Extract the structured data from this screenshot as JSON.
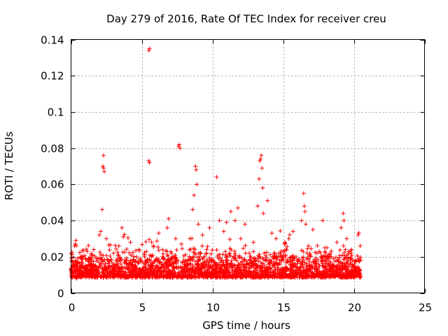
{
  "chart_data": {
    "type": "scatter",
    "title": "Day 279 of 2016, Rate Of TEC Index for receiver creu",
    "xlabel": "GPS time / hours",
    "ylabel": "ROTI / TECUs",
    "xlim": [
      0,
      25
    ],
    "ylim": [
      0,
      0.14
    ],
    "x_ticks": [
      0,
      5,
      10,
      15,
      20,
      25
    ],
    "x_tick_labels": [
      "0",
      "5",
      "10",
      "15",
      "20",
      "25"
    ],
    "y_ticks": [
      0,
      0.02,
      0.04,
      0.06,
      0.08,
      0.1,
      0.12,
      0.14
    ],
    "y_tick_labels": [
      "0",
      "0.02",
      "0.04",
      "0.06",
      "0.08",
      "0.1",
      "0.12",
      "0.14"
    ],
    "grid": true,
    "marker": "+",
    "color": "#ff0000",
    "series": [
      {
        "name": "ROTI",
        "points": [
          [
            0.05,
            0.012
          ],
          [
            0.2,
            0.016
          ],
          [
            0.25,
            0.026
          ],
          [
            0.3,
            0.027
          ],
          [
            0.4,
            0.008
          ],
          [
            0.6,
            0.014
          ],
          [
            0.8,
            0.02
          ],
          [
            1.0,
            0.011
          ],
          [
            1.2,
            0.018
          ],
          [
            1.4,
            0.009
          ],
          [
            1.6,
            0.024
          ],
          [
            1.8,
            0.013
          ],
          [
            2.0,
            0.032
          ],
          [
            2.1,
            0.034
          ],
          [
            2.2,
            0.046
          ],
          [
            2.25,
            0.07
          ],
          [
            2.3,
            0.069
          ],
          [
            2.3,
            0.076
          ],
          [
            2.35,
            0.067
          ],
          [
            2.5,
            0.03
          ],
          [
            2.7,
            0.015
          ],
          [
            3.0,
            0.022
          ],
          [
            3.3,
            0.012
          ],
          [
            3.6,
            0.036
          ],
          [
            3.7,
            0.031
          ],
          [
            3.9,
            0.018
          ],
          [
            4.2,
            0.028
          ],
          [
            4.5,
            0.015
          ],
          [
            4.8,
            0.024
          ],
          [
            5.0,
            0.012
          ],
          [
            5.2,
            0.02
          ],
          [
            5.5,
            0.134
          ],
          [
            5.55,
            0.135
          ],
          [
            5.5,
            0.073
          ],
          [
            5.55,
            0.072
          ],
          [
            5.7,
            0.028
          ],
          [
            6.0,
            0.014
          ],
          [
            6.2,
            0.033
          ],
          [
            6.5,
            0.019
          ],
          [
            6.8,
            0.036
          ],
          [
            6.9,
            0.041
          ],
          [
            7.1,
            0.022
          ],
          [
            7.4,
            0.03
          ],
          [
            7.6,
            0.081
          ],
          [
            7.65,
            0.082
          ],
          [
            7.7,
            0.08
          ],
          [
            7.8,
            0.027
          ],
          [
            8.1,
            0.018
          ],
          [
            8.4,
            0.03
          ],
          [
            8.6,
            0.046
          ],
          [
            8.7,
            0.054
          ],
          [
            8.8,
            0.07
          ],
          [
            8.85,
            0.068
          ],
          [
            8.9,
            0.06
          ],
          [
            9.0,
            0.038
          ],
          [
            9.3,
            0.032
          ],
          [
            9.6,
            0.024
          ],
          [
            9.8,
            0.036
          ],
          [
            10.0,
            0.015
          ],
          [
            10.3,
            0.064
          ],
          [
            10.5,
            0.04
          ],
          [
            10.8,
            0.034
          ],
          [
            11.0,
            0.039
          ],
          [
            11.3,
            0.045
          ],
          [
            11.6,
            0.04
          ],
          [
            11.8,
            0.047
          ],
          [
            12.0,
            0.03
          ],
          [
            12.3,
            0.038
          ],
          [
            12.6,
            0.022
          ],
          [
            12.9,
            0.028
          ],
          [
            13.2,
            0.048
          ],
          [
            13.3,
            0.063
          ],
          [
            13.35,
            0.073
          ],
          [
            13.4,
            0.074
          ],
          [
            13.45,
            0.076
          ],
          [
            13.5,
            0.069
          ],
          [
            13.55,
            0.058
          ],
          [
            13.6,
            0.044
          ],
          [
            13.9,
            0.051
          ],
          [
            14.2,
            0.033
          ],
          [
            14.5,
            0.03
          ],
          [
            14.8,
            0.022
          ],
          [
            15.1,
            0.027
          ],
          [
            15.4,
            0.03
          ],
          [
            15.7,
            0.034
          ],
          [
            16.0,
            0.018
          ],
          [
            16.3,
            0.04
          ],
          [
            16.45,
            0.055
          ],
          [
            16.5,
            0.048
          ],
          [
            16.55,
            0.045
          ],
          [
            16.6,
            0.038
          ],
          [
            16.8,
            0.026
          ],
          [
            17.1,
            0.035
          ],
          [
            17.4,
            0.022
          ],
          [
            17.8,
            0.04
          ],
          [
            18.1,
            0.025
          ],
          [
            18.4,
            0.02
          ],
          [
            18.8,
            0.028
          ],
          [
            19.1,
            0.036
          ],
          [
            19.25,
            0.044
          ],
          [
            19.3,
            0.04
          ],
          [
            19.5,
            0.03
          ],
          [
            19.8,
            0.022
          ],
          [
            20.1,
            0.018
          ],
          [
            20.3,
            0.032
          ],
          [
            20.45,
            0.026
          ]
        ],
        "baseline_band": {
          "x_range": [
            0,
            20.5
          ],
          "typical_range": [
            0.003,
            0.025
          ]
        }
      }
    ]
  }
}
